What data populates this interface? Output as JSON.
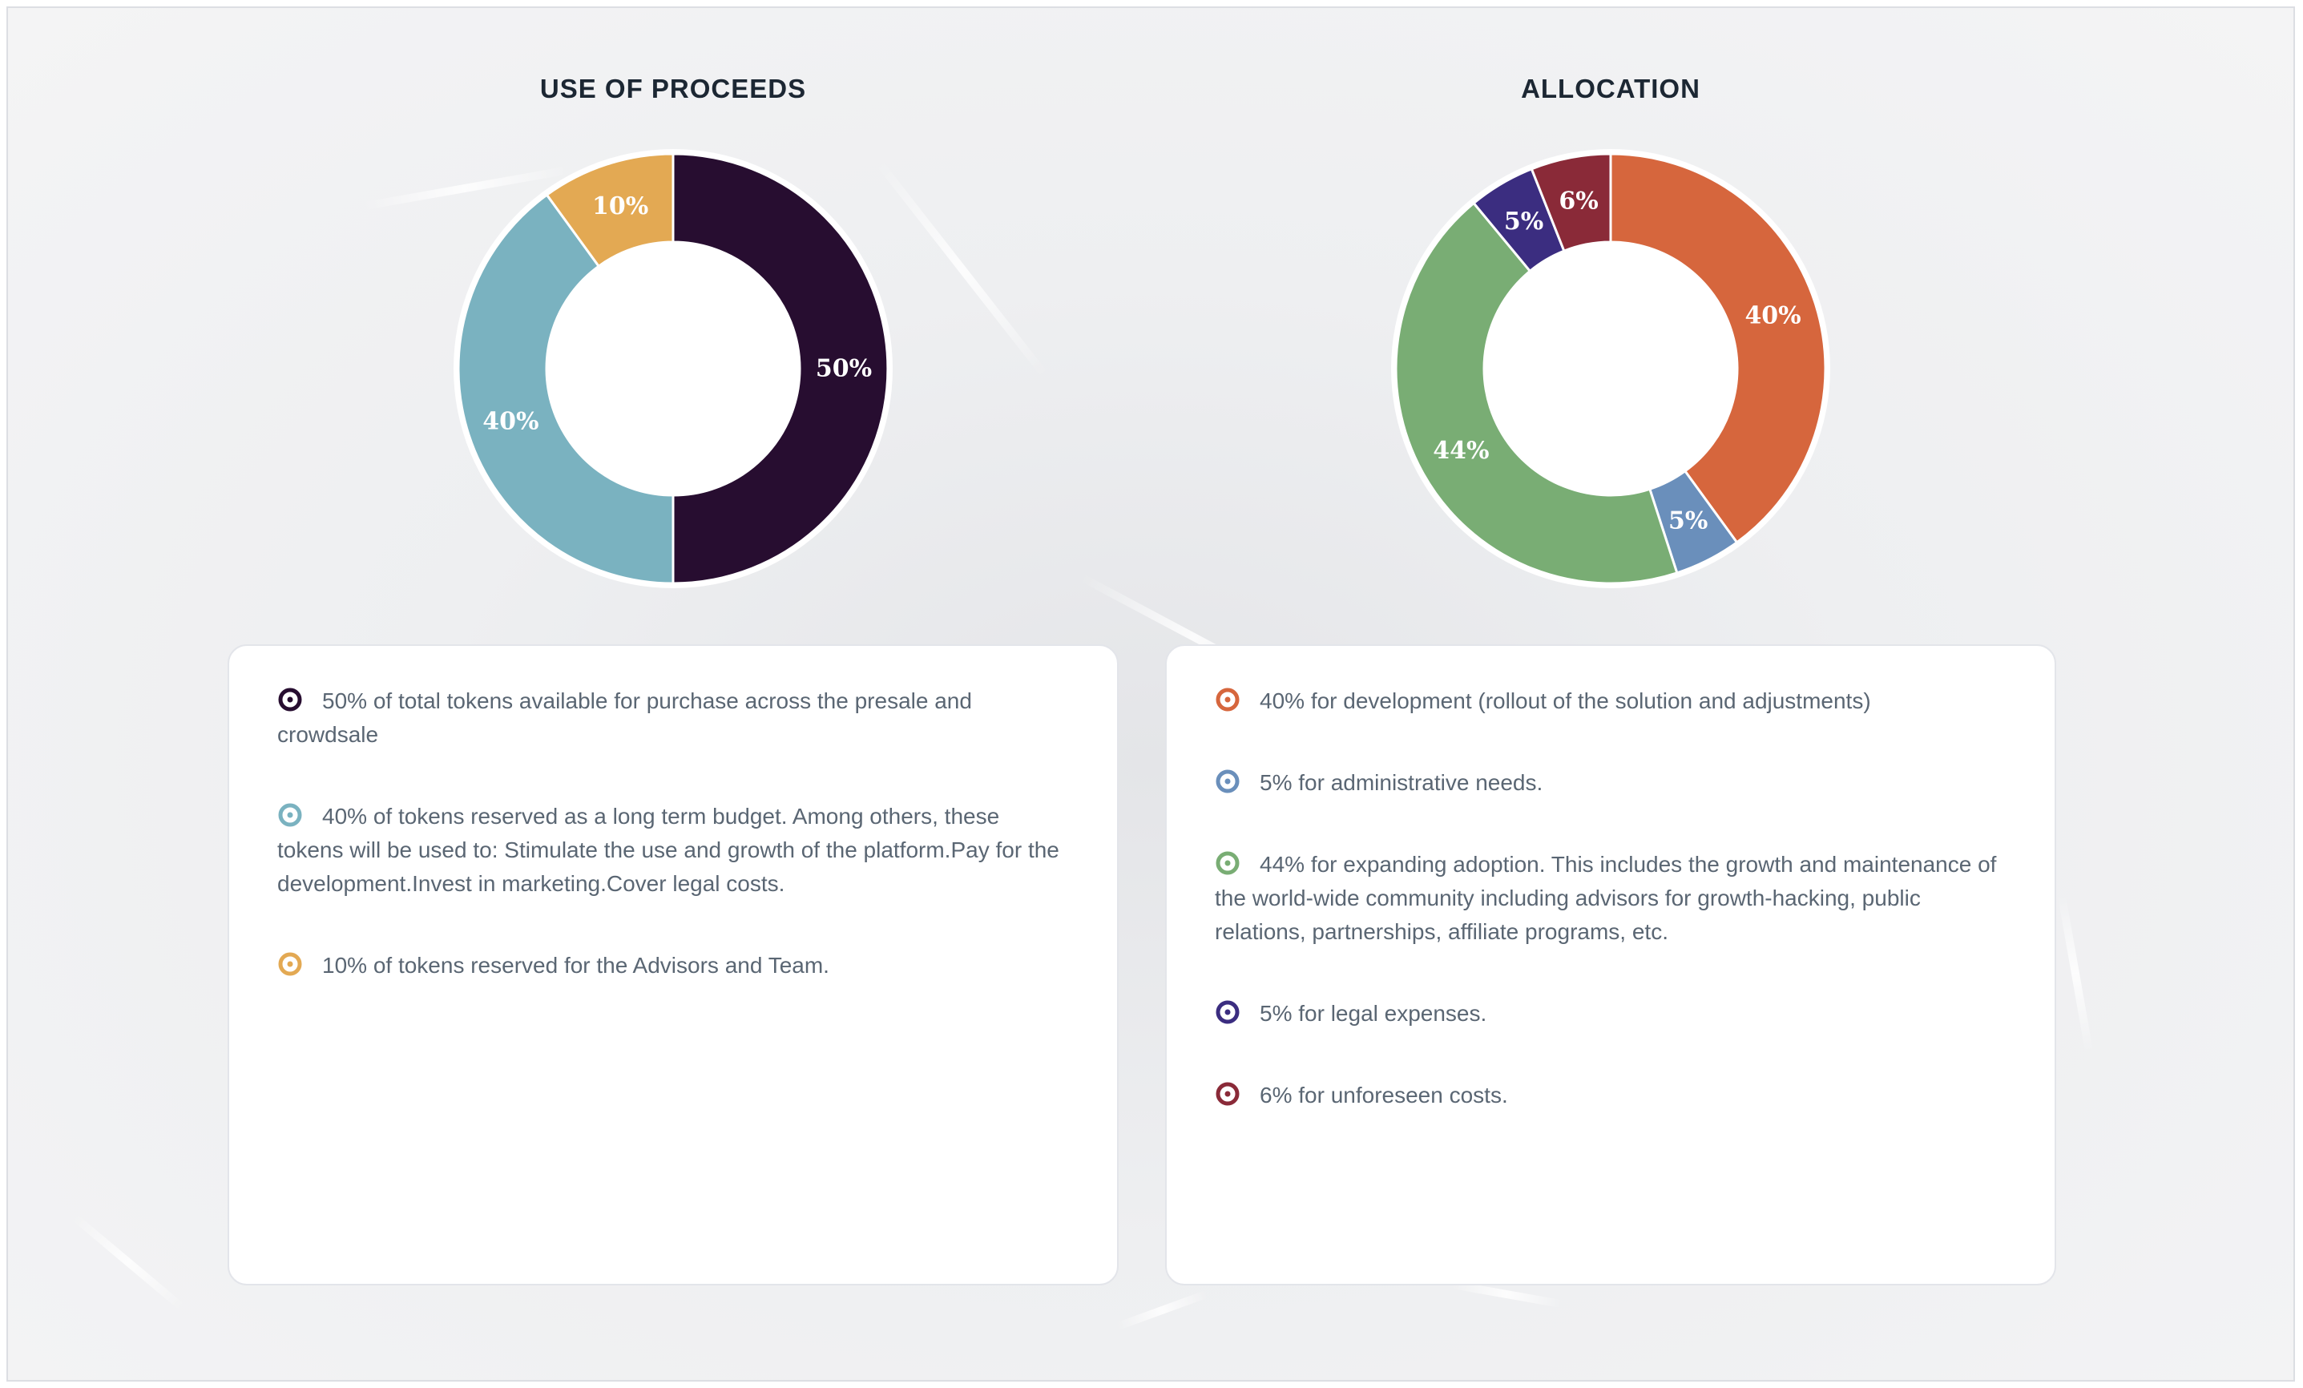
{
  "chart_data": [
    {
      "type": "pie",
      "title": "USE OF PROCEEDS",
      "slices": [
        {
          "label": "50%",
          "value": 50,
          "color": "#270d30"
        },
        {
          "label": "40%",
          "value": 40,
          "color": "#7ab2c0"
        },
        {
          "label": "10%",
          "value": 10,
          "color": "#e3a953"
        }
      ],
      "legend": [
        {
          "text": "50% of total tokens available for purchase across the presale and crowdsale",
          "color": "#270d30"
        },
        {
          "text": "40% of tokens reserved as a long term budget. Among others, these tokens will be used to: Stimulate the use and growth of the platform.Pay for the development.Invest in marketing.Cover legal costs.",
          "color": "#7ab2c0"
        },
        {
          "text": "10% of tokens reserved for the Advisors and Team.",
          "color": "#e3a953"
        }
      ]
    },
    {
      "type": "pie",
      "title": "ALLOCATION",
      "slices": [
        {
          "label": "40%",
          "value": 40,
          "color": "#d6663d"
        },
        {
          "label": "5%",
          "value": 5,
          "color": "#6a8fbb"
        },
        {
          "label": "44%",
          "value": 44,
          "color": "#79ad74"
        },
        {
          "label": "5%",
          "value": 5,
          "color": "#3b2d80"
        },
        {
          "label": "6%",
          "value": 6,
          "color": "#8a2a38"
        }
      ],
      "legend": [
        {
          "text": "40% for development (rollout of the solution and adjustments)",
          "color": "#d6663d"
        },
        {
          "text": "5% for administrative needs.",
          "color": "#6a8fbb"
        },
        {
          "text": "44% for expanding adoption. This includes the growth and maintenance of the world-wide community including advisors for growth-hacking, public relations, partnerships, affiliate programs, etc.",
          "color": "#79ad74"
        },
        {
          "text": "5% for legal expenses.",
          "color": "#3b2d80"
        },
        {
          "text": "6% for unforeseen costs.",
          "color": "#8a2a38"
        }
      ]
    }
  ]
}
